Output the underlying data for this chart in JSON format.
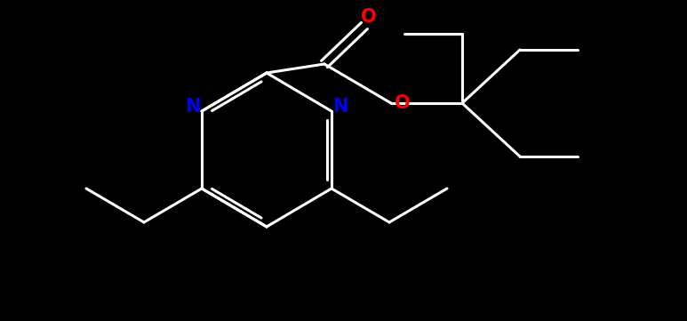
{
  "bg_color": "#000000",
  "bond_color": "#ffffff",
  "N_color": "#0000ff",
  "O_color": "#ff0000",
  "bond_width": 2.2,
  "figsize": [
    7.73,
    3.61
  ],
  "dpi": 100,
  "xlim": [
    0,
    7.73
  ],
  "ylim": [
    0,
    3.61
  ]
}
